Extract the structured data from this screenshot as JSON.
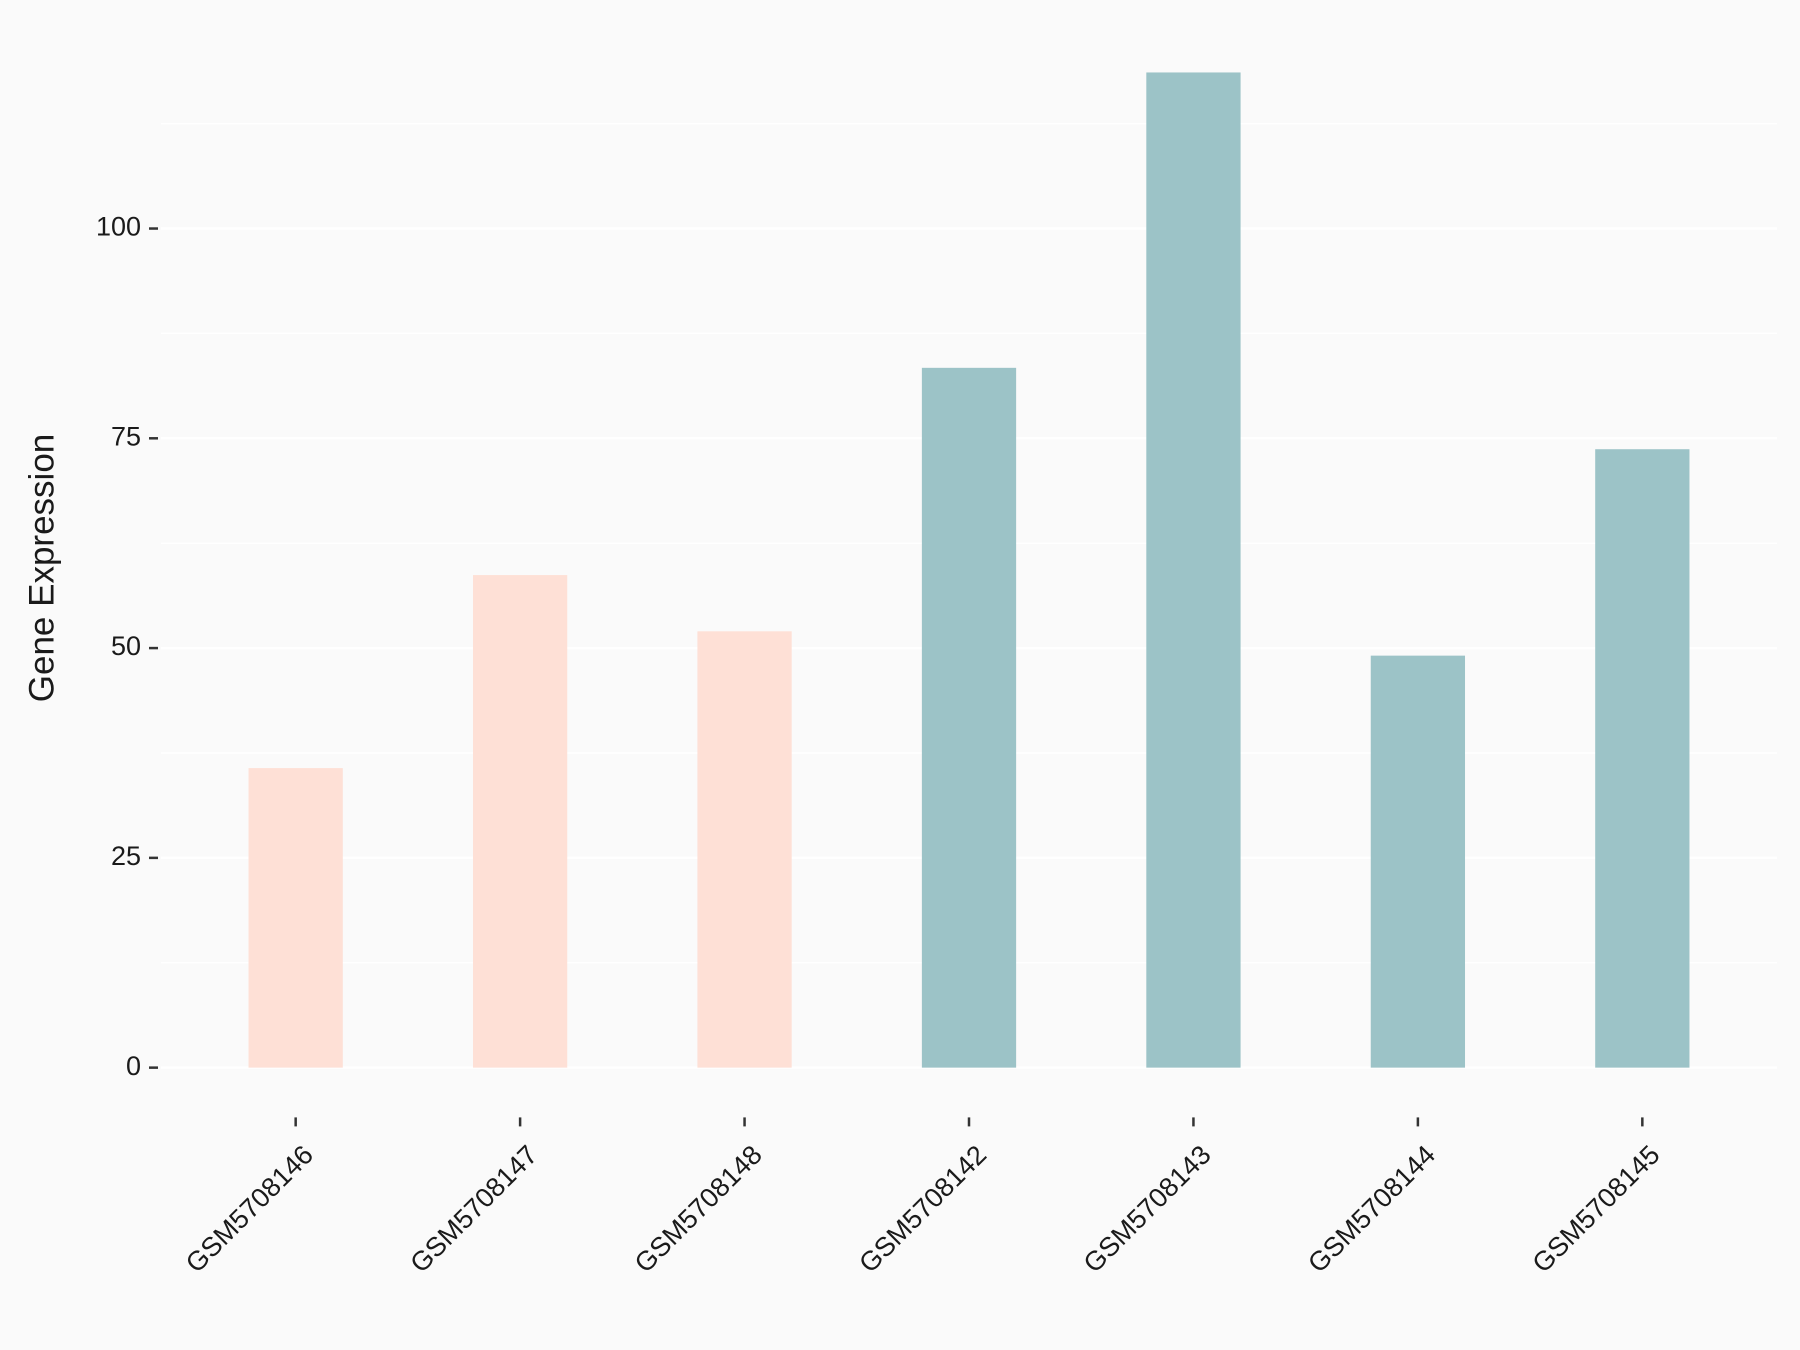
{
  "chart_data": {
    "type": "bar",
    "y_label": "Gene Expression",
    "categories": [
      "GSM5708146",
      "GSM5708147",
      "GSM5708148",
      "GSM5708142",
      "GSM5708143",
      "GSM5708144",
      "GSM5708145"
    ],
    "values": [
      35.7,
      58.7,
      52.0,
      83.4,
      118.6,
      49.1,
      73.7
    ],
    "colors": [
      "#fee0d6",
      "#fee0d6",
      "#fee0d6",
      "#9cc3c7",
      "#9cc3c7",
      "#9cc3c7",
      "#9cc3c7"
    ],
    "ylim": [
      -5.93,
      124.53
    ],
    "yticks": [
      0,
      25,
      50,
      75,
      100
    ],
    "minor_yticks": [
      12.5,
      37.5,
      62.5,
      87.5,
      112.5
    ],
    "grid": true
  }
}
